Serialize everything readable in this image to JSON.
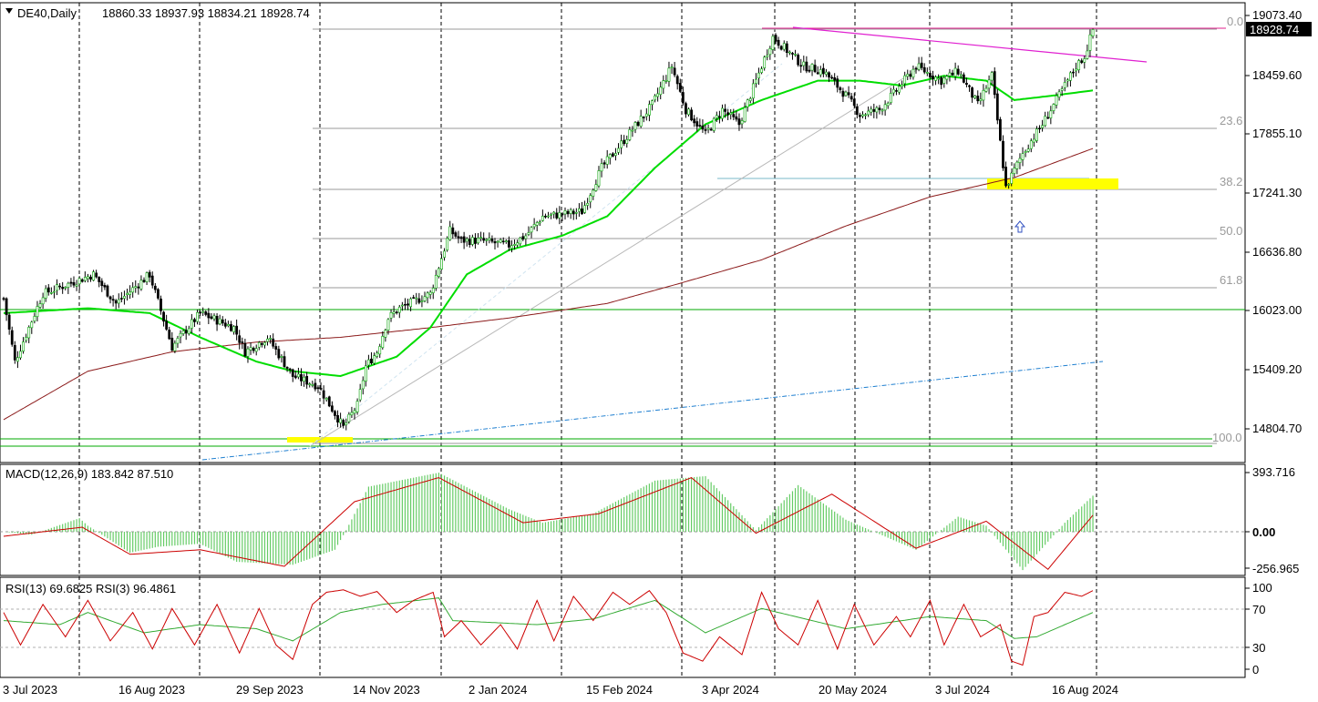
{
  "header": {
    "symbol": "DE40,Daily",
    "ohlc": "18860.33 18937.93 18834.21 18928.74"
  },
  "price_axis": {
    "ticks": [
      "19073.40",
      "18459.60",
      "17855.10",
      "17241.30",
      "16636.80",
      "16023.00",
      "15409.20",
      "14804.70"
    ],
    "current_price_label": "18928.74"
  },
  "fib_levels": [
    "0.0",
    "23.6",
    "38.2",
    "50.0",
    "61.8",
    "100.0"
  ],
  "macd": {
    "label": "MACD(12,26,9) 183.842 87.510",
    "ticks": [
      "393.716",
      "0.00",
      "-256.965"
    ]
  },
  "rsi": {
    "label": "RSI(13) 69.6825  RSI(3) 96.4861",
    "ticks": [
      "100",
      "70",
      "30",
      "0"
    ]
  },
  "x_axis": {
    "labels": [
      "3 Jul 2023",
      "16 Aug 2023",
      "29 Sep 2023",
      "14 Nov 2023",
      "2 Jan 2024",
      "15 Feb 2024",
      "3 Apr 2024",
      "20 May 2024",
      "3 Jul 2024",
      "16 Aug 2024"
    ]
  },
  "colors": {
    "bull": "#00a000",
    "bear": "#000000",
    "ma_fast": "#00dd00",
    "ma_slow": "#8b1a1a",
    "trend_blue": "#1f7fd0",
    "resistance": "#e020d0",
    "highlight": "#ffff00",
    "macd_hist": "#66cc66",
    "macd_signal": "#cc0000",
    "rsi_fast": "#cc0000",
    "rsi_slow": "#33aa33"
  },
  "chart_data": {
    "type": "candlestick",
    "instrument": "DE40",
    "timeframe": "Daily",
    "ylim": [
      14600,
      19150
    ],
    "path_points": [
      [
        0,
        16150
      ],
      [
        4,
        15500
      ],
      [
        14,
        16200
      ],
      [
        32,
        16400
      ],
      [
        40,
        16100
      ],
      [
        52,
        16400
      ],
      [
        60,
        15650
      ],
      [
        70,
        16000
      ],
      [
        82,
        15850
      ],
      [
        86,
        15600
      ],
      [
        94,
        15750
      ],
      [
        103,
        15350
      ],
      [
        112,
        15250
      ],
      [
        121,
        14820
      ],
      [
        126,
        15050
      ],
      [
        129,
        15450
      ],
      [
        133,
        15600
      ],
      [
        137,
        15950
      ],
      [
        141,
        16050
      ],
      [
        152,
        16200
      ],
      [
        159,
        16850
      ],
      [
        163,
        16750
      ],
      [
        170,
        16750
      ],
      [
        180,
        16700
      ],
      [
        186,
        16800
      ],
      [
        192,
        17000
      ],
      [
        199,
        17020
      ],
      [
        206,
        17050
      ],
      [
        213,
        17500
      ],
      [
        220,
        17750
      ],
      [
        231,
        18150
      ],
      [
        238,
        18550
      ],
      [
        243,
        18100
      ],
      [
        250,
        17850
      ],
      [
        256,
        18100
      ],
      [
        262,
        17950
      ],
      [
        270,
        18550
      ],
      [
        274,
        18850
      ],
      [
        285,
        18550
      ],
      [
        292,
        18500
      ],
      [
        300,
        18250
      ],
      [
        305,
        18050
      ],
      [
        312,
        18100
      ],
      [
        318,
        18300
      ],
      [
        325,
        18550
      ],
      [
        334,
        18400
      ],
      [
        340,
        18500
      ],
      [
        347,
        18150
      ],
      [
        352,
        18450
      ],
      [
        357,
        17300
      ],
      [
        363,
        17650
      ],
      [
        370,
        17950
      ],
      [
        375,
        18200
      ],
      [
        382,
        18550
      ],
      [
        385,
        18650
      ],
      [
        388,
        18928.74
      ]
    ],
    "last_candle": {
      "open": 18860.33,
      "high": 18937.93,
      "low": 18834.21,
      "close": 18928.74
    },
    "ma_fast_points": [
      [
        0,
        16000
      ],
      [
        30,
        16050
      ],
      [
        52,
        16000
      ],
      [
        70,
        15750
      ],
      [
        90,
        15500
      ],
      [
        103,
        15400
      ],
      [
        120,
        15350
      ],
      [
        140,
        15550
      ],
      [
        152,
        15850
      ],
      [
        165,
        16400
      ],
      [
        180,
        16650
      ],
      [
        199,
        16800
      ],
      [
        215,
        17000
      ],
      [
        232,
        17500
      ],
      [
        250,
        17950
      ],
      [
        270,
        18200
      ],
      [
        290,
        18400
      ],
      [
        305,
        18400
      ],
      [
        320,
        18350
      ],
      [
        335,
        18450
      ],
      [
        350,
        18400
      ],
      [
        360,
        18200
      ],
      [
        375,
        18250
      ],
      [
        388,
        18300
      ]
    ],
    "ma_slow_points": [
      [
        0,
        14900
      ],
      [
        30,
        15400
      ],
      [
        60,
        15600
      ],
      [
        90,
        15700
      ],
      [
        120,
        15750
      ],
      [
        152,
        15850
      ],
      [
        180,
        15950
      ],
      [
        215,
        16100
      ],
      [
        240,
        16300
      ],
      [
        270,
        16550
      ],
      [
        300,
        16900
      ],
      [
        330,
        17200
      ],
      [
        360,
        17400
      ],
      [
        388,
        17700
      ]
    ],
    "macd_hist_points": [
      [
        0,
        0
      ],
      [
        10,
        -20
      ],
      [
        27,
        90
      ],
      [
        30,
        40
      ],
      [
        45,
        -140
      ],
      [
        55,
        -100
      ],
      [
        70,
        -80
      ],
      [
        83,
        -200
      ],
      [
        103,
        -220
      ],
      [
        118,
        -120
      ],
      [
        122,
        10
      ],
      [
        130,
        300
      ],
      [
        155,
        393
      ],
      [
        180,
        150
      ],
      [
        192,
        60
      ],
      [
        210,
        120
      ],
      [
        232,
        340
      ],
      [
        250,
        370
      ],
      [
        268,
        10
      ],
      [
        283,
        310
      ],
      [
        300,
        80
      ],
      [
        325,
        -120
      ],
      [
        340,
        100
      ],
      [
        350,
        40
      ],
      [
        363,
        -255
      ],
      [
        378,
        60
      ],
      [
        388,
        240
      ]
    ],
    "macd_signal_points": [
      [
        0,
        -30
      ],
      [
        28,
        30
      ],
      [
        45,
        -150
      ],
      [
        70,
        -120
      ],
      [
        100,
        -230
      ],
      [
        125,
        200
      ],
      [
        155,
        360
      ],
      [
        185,
        60
      ],
      [
        212,
        120
      ],
      [
        245,
        360
      ],
      [
        268,
        -10
      ],
      [
        295,
        250
      ],
      [
        325,
        -110
      ],
      [
        350,
        70
      ],
      [
        372,
        -250
      ],
      [
        388,
        110
      ]
    ],
    "rsi_fast_points": [
      [
        0,
        70
      ],
      [
        6,
        30
      ],
      [
        14,
        80
      ],
      [
        22,
        40
      ],
      [
        30,
        85
      ],
      [
        38,
        35
      ],
      [
        46,
        70
      ],
      [
        53,
        25
      ],
      [
        60,
        75
      ],
      [
        68,
        30
      ],
      [
        76,
        80
      ],
      [
        84,
        20
      ],
      [
        91,
        75
      ],
      [
        97,
        30
      ],
      [
        103,
        12
      ],
      [
        110,
        80
      ],
      [
        115,
        95
      ],
      [
        121,
        98
      ],
      [
        127,
        90
      ],
      [
        133,
        96
      ],
      [
        140,
        70
      ],
      [
        146,
        85
      ],
      [
        153,
        95
      ],
      [
        157,
        40
      ],
      [
        163,
        60
      ],
      [
        170,
        30
      ],
      [
        177,
        55
      ],
      [
        183,
        25
      ],
      [
        190,
        85
      ],
      [
        196,
        35
      ],
      [
        203,
        90
      ],
      [
        210,
        60
      ],
      [
        217,
        95
      ],
      [
        223,
        80
      ],
      [
        230,
        97
      ],
      [
        236,
        70
      ],
      [
        242,
        20
      ],
      [
        249,
        10
      ],
      [
        255,
        40
      ],
      [
        263,
        18
      ],
      [
        270,
        95
      ],
      [
        276,
        50
      ],
      [
        283,
        30
      ],
      [
        290,
        85
      ],
      [
        297,
        25
      ],
      [
        303,
        80
      ],
      [
        310,
        30
      ],
      [
        318,
        65
      ],
      [
        323,
        40
      ],
      [
        330,
        85
      ],
      [
        335,
        30
      ],
      [
        342,
        80
      ],
      [
        348,
        40
      ],
      [
        355,
        55
      ],
      [
        359,
        10
      ],
      [
        363,
        5
      ],
      [
        367,
        65
      ],
      [
        372,
        70
      ],
      [
        378,
        95
      ],
      [
        384,
        90
      ],
      [
        388,
        97
      ]
    ],
    "rsi_slow_points": [
      [
        0,
        60
      ],
      [
        20,
        55
      ],
      [
        30,
        70
      ],
      [
        50,
        45
      ],
      [
        70,
        55
      ],
      [
        90,
        50
      ],
      [
        103,
        35
      ],
      [
        120,
        70
      ],
      [
        135,
        80
      ],
      [
        155,
        88
      ],
      [
        160,
        60
      ],
      [
        190,
        55
      ],
      [
        210,
        62
      ],
      [
        232,
        85
      ],
      [
        250,
        45
      ],
      [
        270,
        75
      ],
      [
        300,
        50
      ],
      [
        330,
        65
      ],
      [
        350,
        60
      ],
      [
        360,
        38
      ],
      [
        368,
        40
      ],
      [
        388,
        70
      ]
    ]
  }
}
